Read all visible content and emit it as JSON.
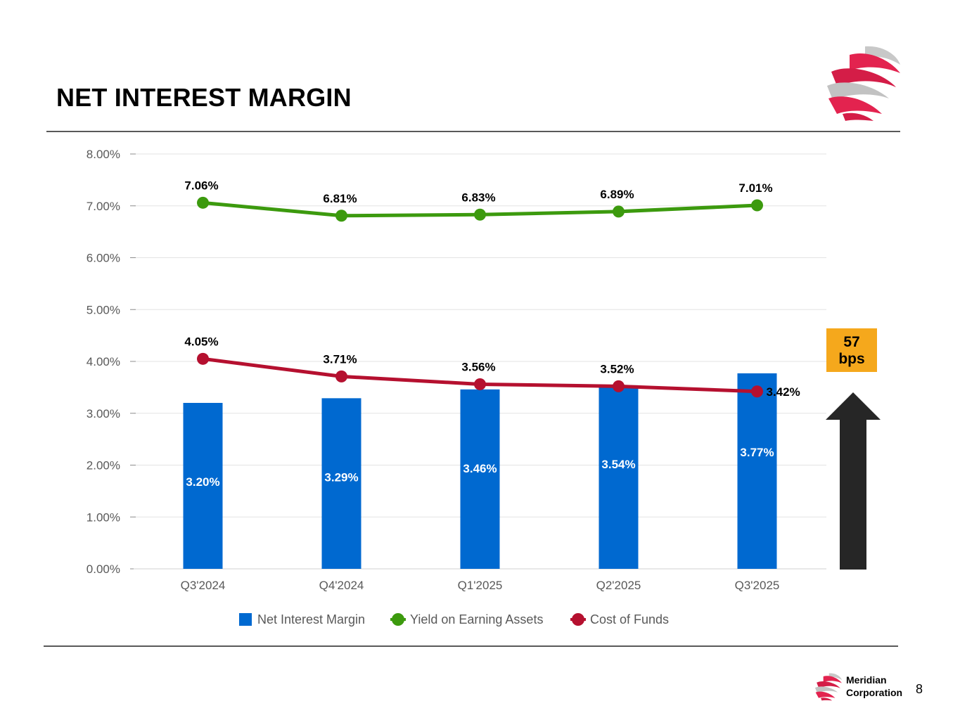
{
  "header": {
    "title": "NET INTEREST MARGIN"
  },
  "colors": {
    "bar": "#0069d0",
    "yield": "#3c9a0e",
    "cost": "#b5102f",
    "badge": "#f5a81c",
    "arrow": "#262626"
  },
  "annotation": {
    "badge_line1": "57",
    "badge_line2": "bps"
  },
  "footer": {
    "brand_line1": "Meridian",
    "brand_line2": "Corporation",
    "page_number": "8"
  },
  "chart_data": {
    "type": "bar",
    "categories": [
      "Q3'2024",
      "Q4'2024",
      "Q1'2025",
      "Q2'2025",
      "Q3'2025"
    ],
    "ylim": [
      0,
      8
    ],
    "yticks": [
      "0.00%",
      "1.00%",
      "2.00%",
      "3.00%",
      "4.00%",
      "5.00%",
      "6.00%",
      "7.00%",
      "8.00%"
    ],
    "grid": true,
    "legend_position": "bottom",
    "series": [
      {
        "name": "Net Interest Margin",
        "kind": "bar",
        "values": [
          3.2,
          3.29,
          3.46,
          3.54,
          3.77
        ],
        "labels": [
          "3.20%",
          "3.29%",
          "3.46%",
          "3.54%",
          "3.77%"
        ]
      },
      {
        "name": "Yield on Earning Assets",
        "kind": "line",
        "values": [
          7.06,
          6.81,
          6.83,
          6.89,
          7.01
        ],
        "labels": [
          "7.06%",
          "6.81%",
          "6.83%",
          "6.89%",
          "7.01%"
        ]
      },
      {
        "name": "Cost of Funds",
        "kind": "line",
        "values": [
          4.05,
          3.71,
          3.56,
          3.52,
          3.42
        ],
        "labels": [
          "4.05%",
          "3.71%",
          "3.56%",
          "3.52%",
          "3.42%"
        ]
      }
    ]
  }
}
